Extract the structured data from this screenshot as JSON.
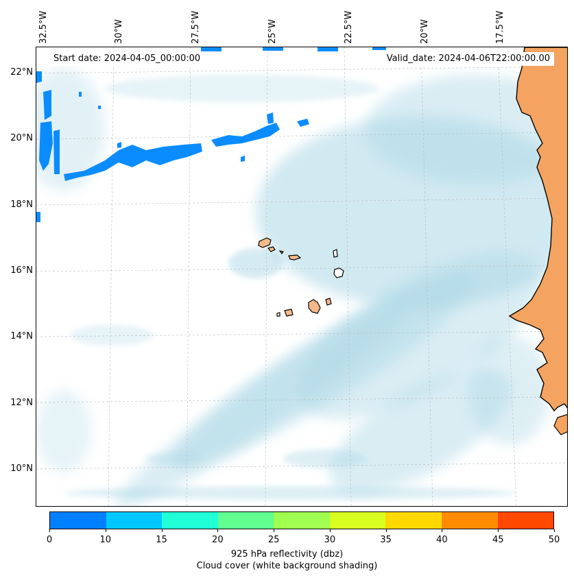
{
  "map": {
    "start_date": "Start date: 2024-04-05_00:00:00",
    "valid_date": "Valid_date: 2024-04-06T22:00:00.00",
    "lon_labels": [
      "32.5°W",
      "30°W",
      "27.5°W",
      "25°W",
      "22.5°W",
      "20°W",
      "17.5°W"
    ],
    "lat_labels": [
      "22°N",
      "20°N",
      "18°N",
      "16°N",
      "14°N",
      "12°N",
      "10°N"
    ],
    "land_color": "#f4a460",
    "island_color": "#f5b98a",
    "cloud_color": "#add8e6",
    "reflectivity_color": "#0a8cff"
  },
  "colorbar": {
    "ticks": [
      "0",
      "10",
      "15",
      "20",
      "25",
      "30",
      "35",
      "40",
      "45",
      "50"
    ],
    "colors": [
      "#0080ff",
      "#00c8ff",
      "#20ffd8",
      "#60ff90",
      "#a0ff50",
      "#d8ff20",
      "#ffd800",
      "#ff8c00",
      "#ff4800"
    ],
    "label": "925 hPa reflectivity (dbz)",
    "sublabel": "Cloud cover (white background shading)"
  }
}
